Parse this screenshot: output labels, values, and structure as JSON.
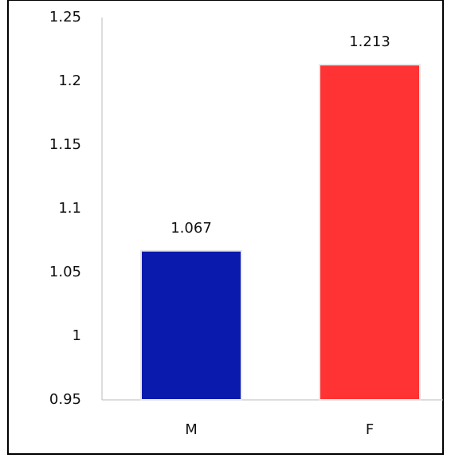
{
  "chart_data": {
    "type": "bar",
    "categories": [
      "M",
      "F"
    ],
    "values": [
      1.067,
      1.213
    ],
    "colors": [
      "#0a1aad",
      "#ff3333"
    ],
    "ylim": [
      0.95,
      1.25
    ],
    "yticks": [
      0.95,
      1,
      1.05,
      1.1,
      1.15,
      1.2,
      1.25
    ],
    "grid": false
  }
}
